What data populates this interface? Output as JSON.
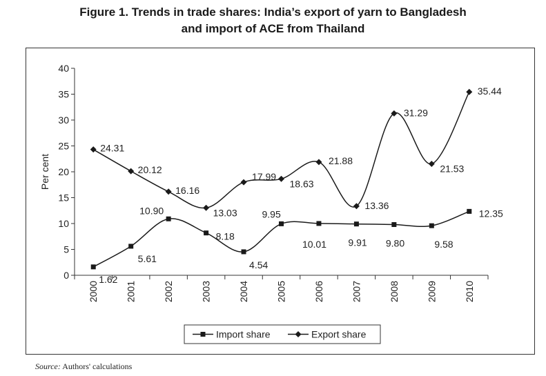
{
  "title_line1": "Figure 1. Trends in trade shares: India’s export of yarn to Bangladesh",
  "title_line2": "and import of ACE from Thailand",
  "source_label": "Source:",
  "source_text": " Authors' calculations",
  "chart_data": {
    "type": "line",
    "title": "Figure 1. Trends in trade shares: India’s export of yarn to Bangladesh and import of ACE from Thailand",
    "xlabel": "",
    "ylabel": "Per cent",
    "ylim": [
      0,
      40
    ],
    "yticks": [
      0,
      5,
      10,
      15,
      20,
      25,
      30,
      35,
      40
    ],
    "ytick_labels": [
      "0",
      "5",
      "10",
      "15",
      "20",
      "25",
      "30",
      "35",
      "40"
    ],
    "categories": [
      "2000",
      "2001",
      "2002",
      "2003",
      "2004",
      "2005",
      "2006",
      "2007",
      "2008",
      "2009",
      "2010"
    ],
    "series": [
      {
        "name": "Import share",
        "marker": "square",
        "color": "#1a1a1a",
        "values": [
          1.62,
          5.61,
          10.9,
          8.18,
          4.54,
          9.95,
          10.01,
          9.91,
          9.8,
          9.58,
          12.35
        ],
        "labels": [
          "1.62",
          "5.61",
          "10.90",
          "8.18",
          "4.54",
          "9.95",
          "10.01",
          "9.91",
          "9.80",
          "9.58",
          "12.35"
        ]
      },
      {
        "name": "Export share",
        "marker": "diamond",
        "color": "#1a1a1a",
        "values": [
          24.31,
          20.12,
          16.16,
          13.03,
          17.99,
          18.63,
          21.88,
          13.36,
          31.29,
          21.53,
          35.44
        ],
        "labels": [
          "24.31",
          "20.12",
          "16.16",
          "13.03",
          "17.99",
          "18.63",
          "21.88",
          "13.36",
          "31.29",
          "21.53",
          "35.44"
        ]
      }
    ],
    "legend_position": "bottom",
    "grid": false,
    "smooth": true
  }
}
